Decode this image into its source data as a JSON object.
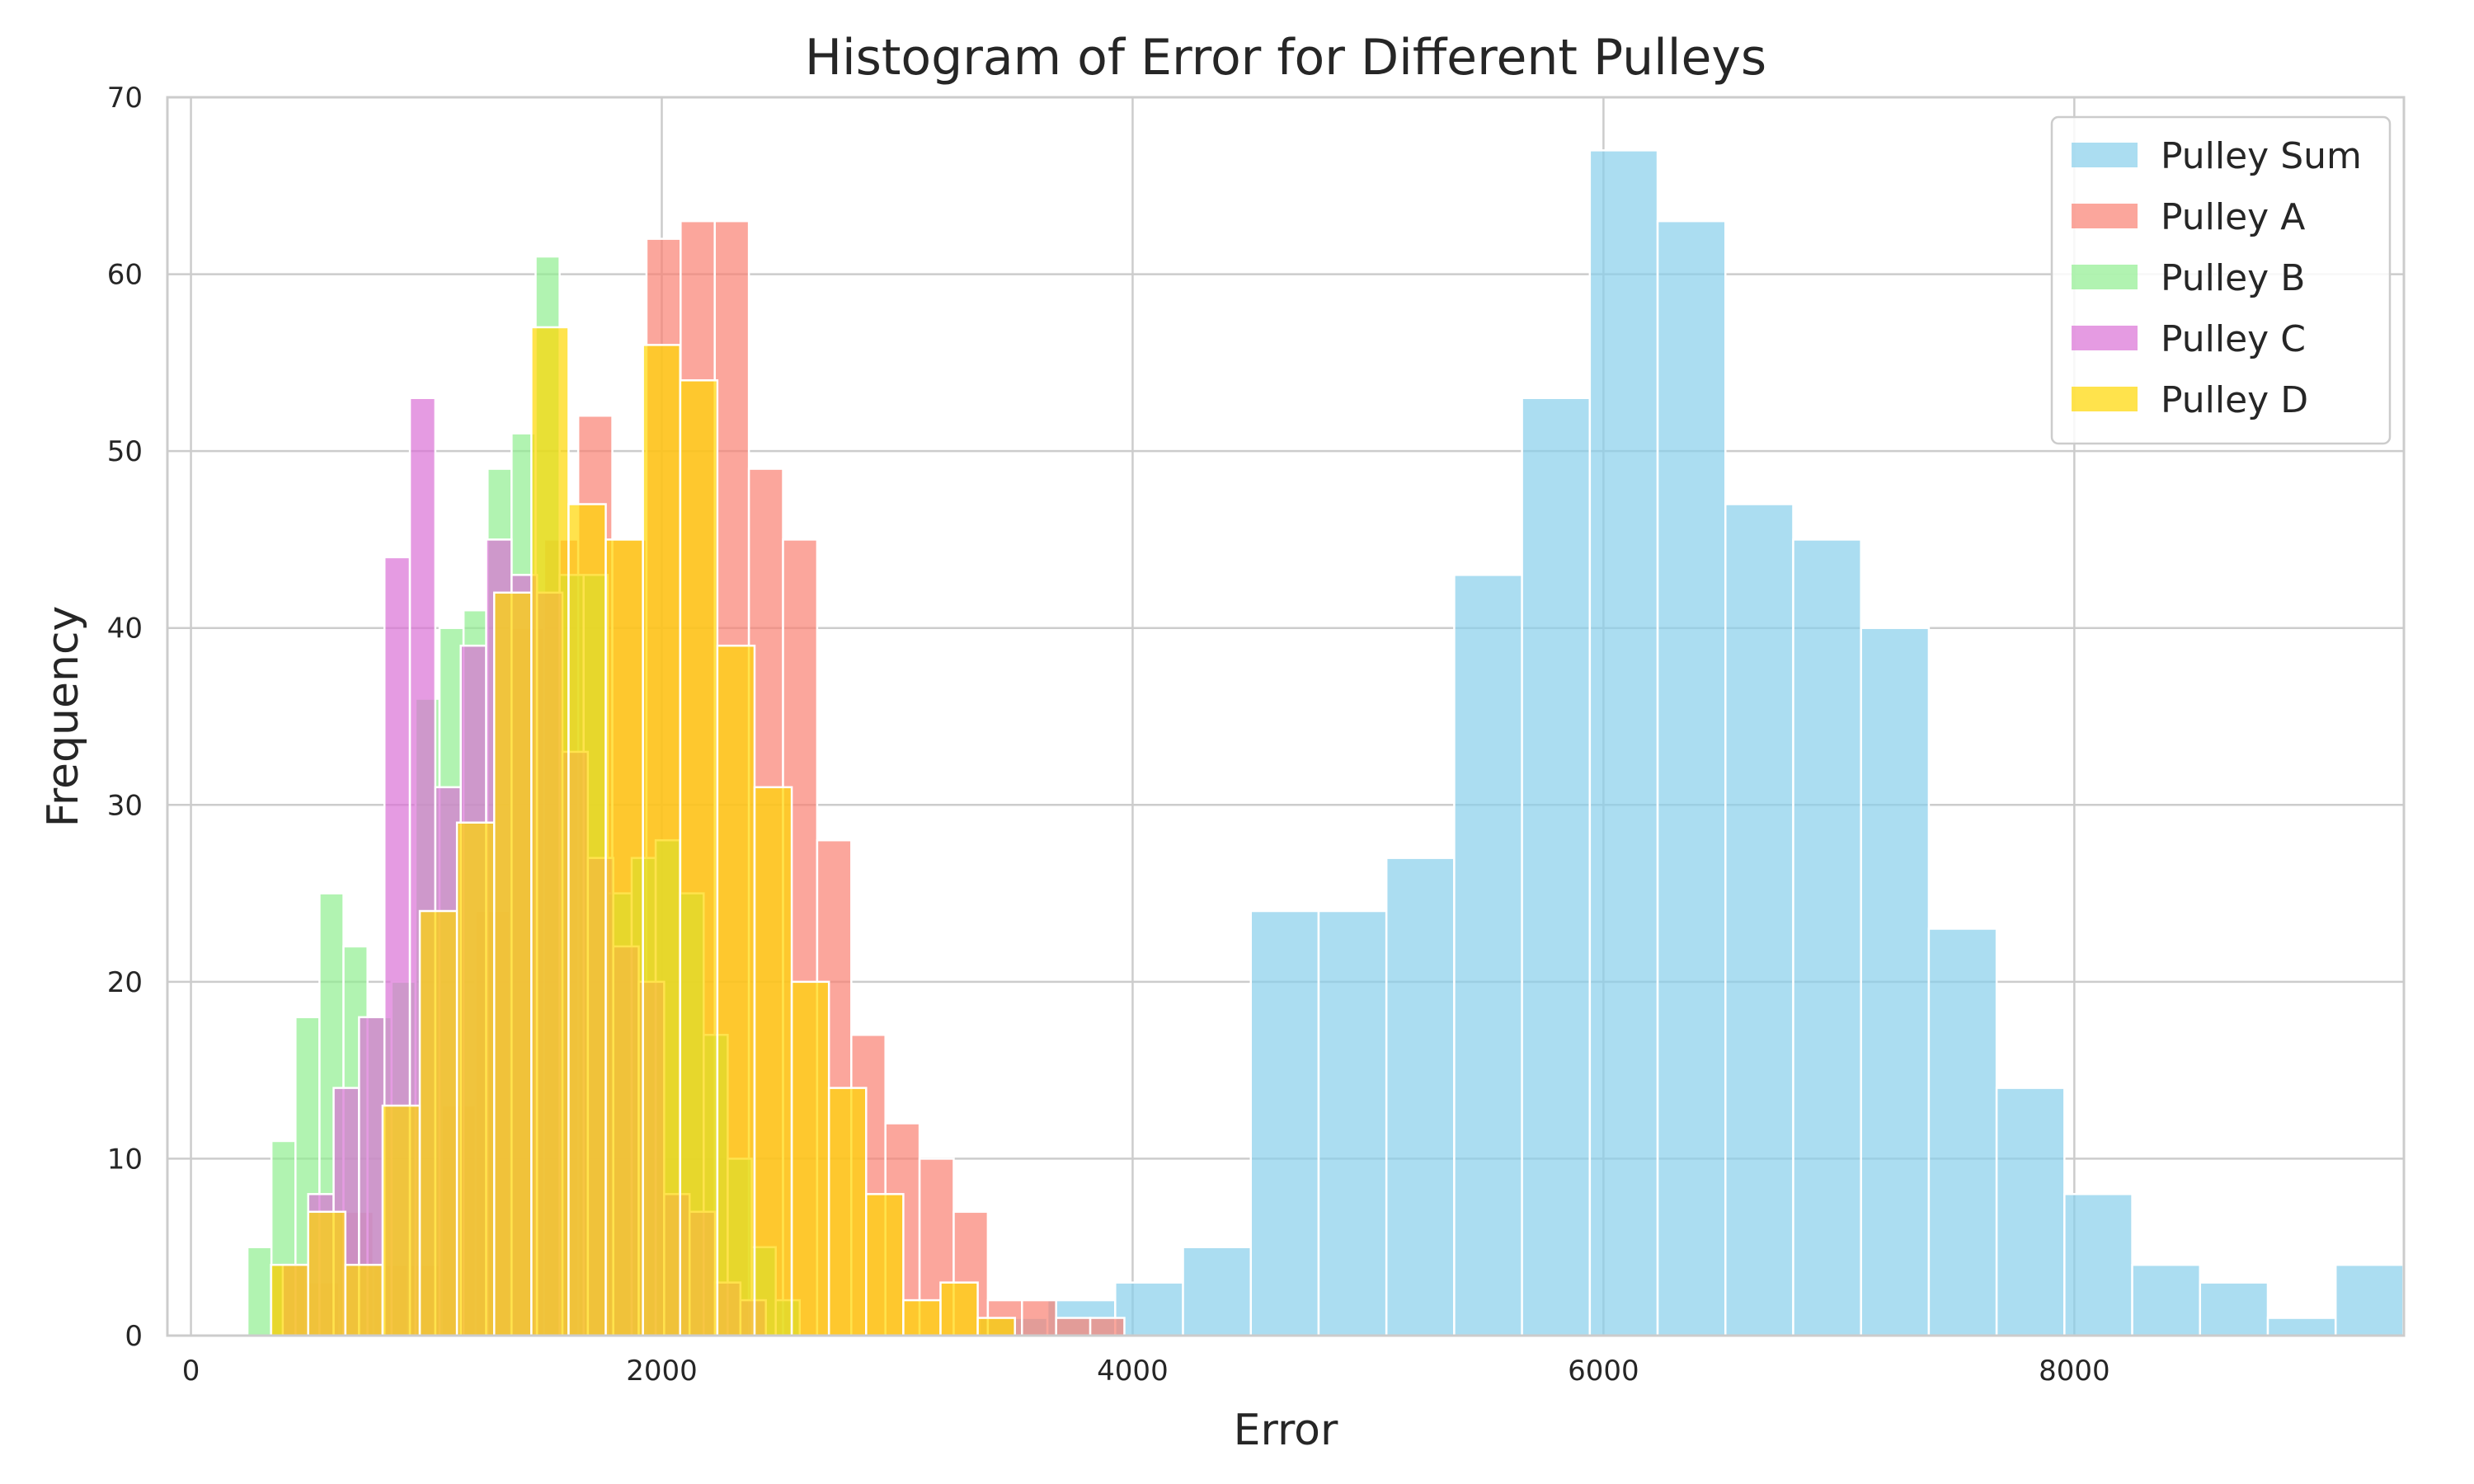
{
  "chart_data": {
    "type": "bar",
    "subtype": "histogram",
    "title": "Histogram of Error for Different Pulleys",
    "xlabel": "Error",
    "ylabel": "Frequency",
    "xlim": [
      -100,
      9400
    ],
    "ylim": [
      0,
      70
    ],
    "xticks": [
      0,
      2000,
      4000,
      6000,
      8000
    ],
    "yticks": [
      0,
      10,
      20,
      30,
      40,
      50,
      60,
      70
    ],
    "grid": true,
    "legend_position": "top-right",
    "alpha": 0.7,
    "series": [
      {
        "name": "Pulley Sum",
        "color": "#87CEEB",
        "bin_start": 3350,
        "bin_width": 288,
        "counts": [
          1,
          2,
          3,
          5,
          24,
          24,
          27,
          43,
          53,
          67,
          63,
          47,
          45,
          40,
          23,
          14,
          8,
          4,
          3,
          1,
          4
        ]
      },
      {
        "name": "Pulley A",
        "color": "#FA8072",
        "bin_start": 340,
        "bin_width": 145,
        "counts": [
          4,
          3,
          7,
          4,
          4,
          13,
          24,
          40,
          45,
          52,
          45,
          62,
          63,
          63,
          49,
          45,
          28,
          17,
          12,
          10,
          7,
          2,
          2,
          1,
          1
        ]
      },
      {
        "name": "Pulley B",
        "color": "#90EE90",
        "bin_start": 240,
        "bin_width": 102,
        "counts": [
          5,
          11,
          18,
          25,
          22,
          18,
          20,
          36,
          40,
          41,
          49,
          51,
          61,
          43,
          43,
          25,
          27,
          28,
          25,
          17,
          10,
          5,
          2
        ]
      },
      {
        "name": "Pulley C",
        "color": "#DA70D6",
        "bin_start": 390,
        "bin_width": 108,
        "counts": [
          4,
          8,
          14,
          18,
          44,
          53,
          31,
          39,
          45,
          43,
          42,
          33,
          27,
          22,
          20,
          8,
          7,
          3,
          2
        ]
      },
      {
        "name": "Pulley D",
        "color": "#FFD700",
        "bin_start": 340,
        "bin_width": 158,
        "counts": [
          4,
          7,
          4,
          13,
          24,
          29,
          42,
          57,
          47,
          45,
          56,
          54,
          39,
          31,
          20,
          14,
          8,
          2,
          3,
          1
        ]
      }
    ]
  }
}
